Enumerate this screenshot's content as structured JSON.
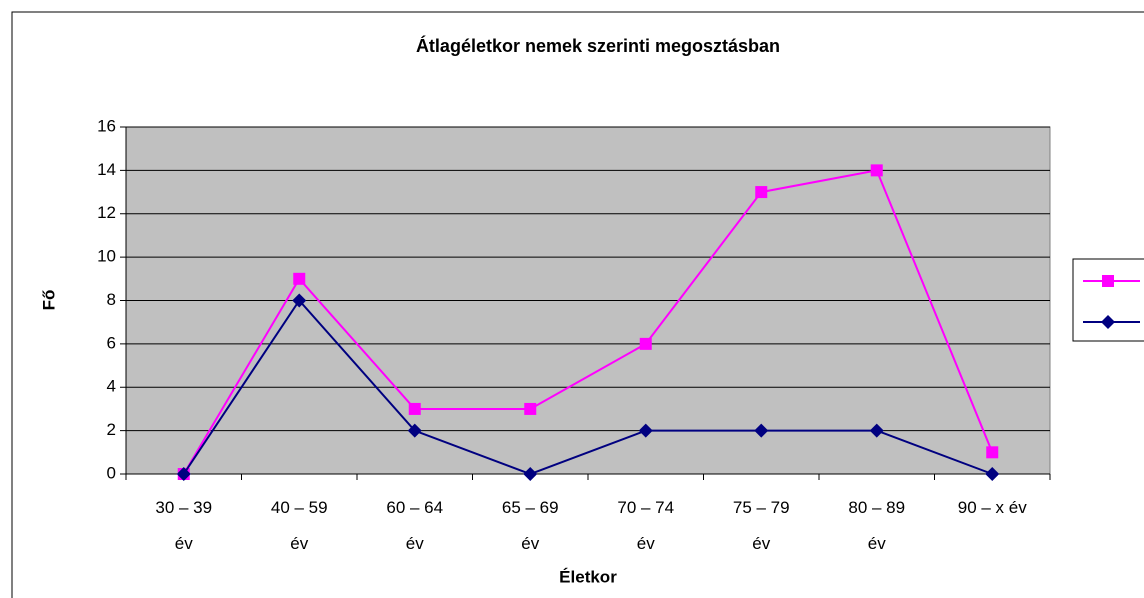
{
  "chart_data": {
    "type": "line",
    "title": "Átlagéletkor nemek szerinti megosztásban",
    "x_label": "Életkor",
    "y_label": "Fő",
    "categories": [
      "30 – 39\név",
      "40 – 59\név",
      "60 – 64\név",
      "65 – 69\név",
      "70 – 74\név",
      "75 – 79\név",
      "80 – 89\név",
      "90 – x év"
    ],
    "series": [
      {
        "color": "#ff00ff",
        "marker": "square",
        "values": [
          0,
          9,
          3,
          3,
          6,
          13,
          14,
          1
        ]
      },
      {
        "color": "#000080",
        "marker": "diamond",
        "values": [
          0,
          8,
          2,
          0,
          2,
          2,
          2,
          0
        ]
      }
    ],
    "ylim": [
      0,
      16
    ],
    "yticks": [
      0,
      2,
      4,
      6,
      8,
      10,
      12,
      14,
      16
    ],
    "grid": true
  }
}
